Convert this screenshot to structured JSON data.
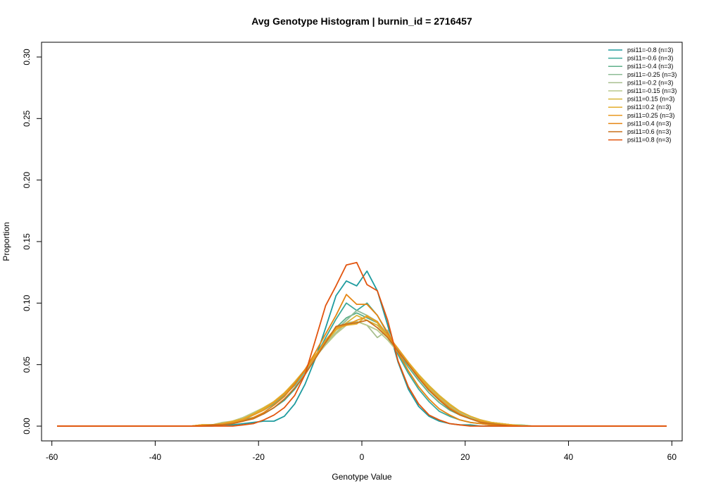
{
  "chart_data": {
    "type": "line",
    "title": "Avg Genotype Histogram | burnin_id = 2716457",
    "xlabel": "Genotype Value",
    "ylabel": "Proportion",
    "xlim": [
      -62,
      62
    ],
    "ylim": [
      -0.012,
      0.312
    ],
    "xticks": [
      -60,
      -40,
      -20,
      0,
      20,
      40,
      60
    ],
    "yticks": [
      0.0,
      0.05,
      0.1,
      0.15,
      0.2,
      0.25,
      0.3
    ],
    "ytick_labels": [
      "0.00",
      "0.05",
      "0.10",
      "0.15",
      "0.20",
      "0.25",
      "0.30"
    ],
    "grid": false,
    "legend_position": "top-right",
    "x": [
      -59,
      -57,
      -55,
      -53,
      -51,
      -49,
      -47,
      -45,
      -43,
      -41,
      -39,
      -37,
      -35,
      -33,
      -31,
      -29,
      -27,
      -25,
      -23,
      -21,
      -19,
      -17,
      -15,
      -13,
      -11,
      -9,
      -7,
      -5,
      -3,
      -1,
      1,
      3,
      5,
      7,
      9,
      11,
      13,
      15,
      17,
      19,
      21,
      23,
      25,
      27,
      29,
      31,
      33,
      35,
      37,
      39,
      41,
      43,
      45,
      47,
      49,
      51,
      53,
      55,
      57,
      59
    ],
    "series": [
      {
        "name": "psi11=-0.8 (n=3)",
        "color": "#1E9B9F",
        "values": [
          0,
          0,
          0,
          0,
          0,
          0,
          0,
          0,
          0,
          0,
          0,
          0,
          0,
          0,
          0,
          0,
          0.001,
          0.001,
          0.002,
          0.003,
          0.004,
          0.004,
          0.008,
          0.018,
          0.034,
          0.055,
          0.08,
          0.106,
          0.118,
          0.114,
          0.126,
          0.11,
          0.082,
          0.052,
          0.03,
          0.016,
          0.008,
          0.004,
          0.002,
          0.001,
          0.001,
          0,
          0,
          0,
          0,
          0,
          0,
          0,
          0,
          0,
          0,
          0,
          0,
          0,
          0,
          0,
          0,
          0,
          0,
          0
        ]
      },
      {
        "name": "psi11=-0.6 (n=3)",
        "color": "#3AA89A",
        "values": [
          0,
          0,
          0,
          0,
          0,
          0,
          0,
          0,
          0,
          0,
          0,
          0,
          0,
          0,
          0,
          0.001,
          0.002,
          0.003,
          0.005,
          0.007,
          0.01,
          0.015,
          0.021,
          0.03,
          0.042,
          0.056,
          0.072,
          0.087,
          0.1,
          0.094,
          0.1,
          0.09,
          0.075,
          0.058,
          0.043,
          0.03,
          0.02,
          0.012,
          0.008,
          0.005,
          0.003,
          0.002,
          0.001,
          0,
          0,
          0,
          0,
          0,
          0,
          0,
          0,
          0,
          0,
          0,
          0,
          0,
          0,
          0,
          0,
          0
        ]
      },
      {
        "name": "psi11=-0.4 (n=3)",
        "color": "#5FB08A",
        "values": [
          0,
          0,
          0,
          0,
          0,
          0,
          0,
          0,
          0,
          0,
          0,
          0,
          0,
          0,
          0.001,
          0.001,
          0.002,
          0.004,
          0.006,
          0.009,
          0.013,
          0.018,
          0.025,
          0.033,
          0.044,
          0.056,
          0.068,
          0.08,
          0.088,
          0.092,
          0.088,
          0.084,
          0.072,
          0.06,
          0.048,
          0.037,
          0.027,
          0.019,
          0.013,
          0.009,
          0.006,
          0.004,
          0.002,
          0.001,
          0.001,
          0,
          0,
          0,
          0,
          0,
          0,
          0,
          0,
          0,
          0,
          0,
          0,
          0,
          0,
          0
        ]
      },
      {
        "name": "psi11=-0.25 (n=3)",
        "color": "#8EBC96",
        "values": [
          0,
          0,
          0,
          0,
          0,
          0,
          0,
          0,
          0,
          0,
          0,
          0,
          0,
          0,
          0.001,
          0.001,
          0.002,
          0.004,
          0.006,
          0.01,
          0.014,
          0.019,
          0.026,
          0.034,
          0.045,
          0.057,
          0.068,
          0.078,
          0.086,
          0.094,
          0.09,
          0.085,
          0.072,
          0.062,
          0.05,
          0.04,
          0.03,
          0.022,
          0.015,
          0.01,
          0.007,
          0.004,
          0.003,
          0.002,
          0.001,
          0,
          0,
          0,
          0,
          0,
          0,
          0,
          0,
          0,
          0,
          0,
          0,
          0,
          0,
          0
        ]
      },
      {
        "name": "psi11=-0.2 (n=3)",
        "color": "#A8BF8E",
        "values": [
          0,
          0,
          0,
          0,
          0,
          0,
          0,
          0,
          0,
          0,
          0,
          0,
          0,
          0,
          0.001,
          0.001,
          0.002,
          0.004,
          0.007,
          0.01,
          0.014,
          0.02,
          0.026,
          0.035,
          0.045,
          0.056,
          0.067,
          0.076,
          0.084,
          0.085,
          0.082,
          0.072,
          0.078,
          0.06,
          0.05,
          0.041,
          0.031,
          0.023,
          0.016,
          0.011,
          0.007,
          0.005,
          0.003,
          0.002,
          0.001,
          0.001,
          0,
          0,
          0,
          0,
          0,
          0,
          0,
          0,
          0,
          0,
          0,
          0,
          0,
          0
        ]
      },
      {
        "name": "psi11=-0.15 (n=3)",
        "color": "#B8C98C",
        "values": [
          0,
          0,
          0,
          0,
          0,
          0,
          0,
          0,
          0,
          0,
          0,
          0,
          0,
          0,
          0.001,
          0.001,
          0.003,
          0.004,
          0.007,
          0.011,
          0.015,
          0.02,
          0.027,
          0.035,
          0.045,
          0.056,
          0.066,
          0.075,
          0.082,
          0.085,
          0.082,
          0.078,
          0.07,
          0.06,
          0.051,
          0.041,
          0.032,
          0.024,
          0.017,
          0.012,
          0.008,
          0.005,
          0.003,
          0.002,
          0.001,
          0.001,
          0,
          0,
          0,
          0,
          0,
          0,
          0,
          0,
          0,
          0,
          0,
          0,
          0,
          0
        ]
      },
      {
        "name": "psi11=0.15 (n=3)",
        "color": "#D6B53A",
        "values": [
          0,
          0,
          0,
          0,
          0,
          0,
          0,
          0,
          0,
          0,
          0,
          0,
          0,
          0,
          0.001,
          0.001,
          0.002,
          0.004,
          0.006,
          0.01,
          0.015,
          0.02,
          0.027,
          0.036,
          0.046,
          0.058,
          0.068,
          0.078,
          0.084,
          0.09,
          0.086,
          0.082,
          0.073,
          0.063,
          0.052,
          0.042,
          0.033,
          0.025,
          0.018,
          0.012,
          0.008,
          0.005,
          0.003,
          0.002,
          0.001,
          0,
          0,
          0,
          0,
          0,
          0,
          0,
          0,
          0,
          0,
          0,
          0,
          0,
          0,
          0
        ]
      },
      {
        "name": "psi11=0.2 (n=3)",
        "color": "#E3AD2C",
        "values": [
          0,
          0,
          0,
          0,
          0,
          0,
          0,
          0,
          0,
          0,
          0,
          0,
          0,
          0,
          0.001,
          0.001,
          0.002,
          0.004,
          0.006,
          0.01,
          0.014,
          0.02,
          0.027,
          0.035,
          0.046,
          0.057,
          0.068,
          0.079,
          0.082,
          0.083,
          0.09,
          0.084,
          0.074,
          0.063,
          0.052,
          0.041,
          0.032,
          0.024,
          0.017,
          0.012,
          0.008,
          0.005,
          0.003,
          0.002,
          0.001,
          0,
          0,
          0,
          0,
          0,
          0,
          0,
          0,
          0,
          0,
          0,
          0,
          0,
          0,
          0
        ]
      },
      {
        "name": "psi11=0.25 (n=3)",
        "color": "#E89A22",
        "values": [
          0,
          0,
          0,
          0,
          0,
          0,
          0,
          0,
          0,
          0,
          0,
          0,
          0,
          0,
          0.001,
          0.001,
          0.002,
          0.003,
          0.005,
          0.009,
          0.013,
          0.019,
          0.026,
          0.035,
          0.045,
          0.057,
          0.07,
          0.08,
          0.082,
          0.086,
          0.089,
          0.085,
          0.074,
          0.063,
          0.051,
          0.04,
          0.03,
          0.022,
          0.015,
          0.01,
          0.006,
          0.004,
          0.002,
          0.001,
          0.001,
          0,
          0,
          0,
          0,
          0,
          0,
          0,
          0,
          0,
          0,
          0,
          0,
          0,
          0,
          0
        ]
      },
      {
        "name": "psi11=0.4 (n=3)",
        "color": "#E58512",
        "values": [
          0,
          0,
          0,
          0,
          0,
          0,
          0,
          0,
          0,
          0,
          0,
          0,
          0,
          0,
          0,
          0.001,
          0.001,
          0.002,
          0.004,
          0.007,
          0.011,
          0.017,
          0.024,
          0.034,
          0.046,
          0.06,
          0.075,
          0.09,
          0.107,
          0.099,
          0.099,
          0.09,
          0.076,
          0.06,
          0.045,
          0.032,
          0.022,
          0.014,
          0.009,
          0.005,
          0.003,
          0.002,
          0.001,
          0,
          0,
          0,
          0,
          0,
          0,
          0,
          0,
          0,
          0,
          0,
          0,
          0,
          0,
          0,
          0,
          0
        ]
      },
      {
        "name": "psi11=0.6 (n=3)",
        "color": "#C8701C",
        "values": [
          0,
          0,
          0,
          0,
          0,
          0,
          0,
          0,
          0,
          0,
          0,
          0,
          0,
          0,
          0,
          0.001,
          0.001,
          0.002,
          0.004,
          0.006,
          0.01,
          0.015,
          0.022,
          0.031,
          0.042,
          0.055,
          0.068,
          0.081,
          0.083,
          0.084,
          0.086,
          0.08,
          0.072,
          0.061,
          0.05,
          0.039,
          0.029,
          0.021,
          0.014,
          0.009,
          0.006,
          0.003,
          0.002,
          0.001,
          0,
          0,
          0,
          0,
          0,
          0,
          0,
          0,
          0,
          0,
          0,
          0,
          0,
          0,
          0,
          0
        ]
      },
      {
        "name": "psi11=0.8 (n=3)",
        "color": "#E2540E",
        "values": [
          0,
          0,
          0,
          0,
          0,
          0,
          0,
          0,
          0,
          0,
          0,
          0,
          0,
          0,
          0,
          0,
          0,
          0,
          0.001,
          0.002,
          0.005,
          0.009,
          0.015,
          0.025,
          0.042,
          0.07,
          0.098,
          0.114,
          0.131,
          0.133,
          0.115,
          0.11,
          0.086,
          0.053,
          0.032,
          0.018,
          0.009,
          0.005,
          0.002,
          0.001,
          0,
          0,
          0,
          0,
          0,
          0,
          0,
          0,
          0,
          0,
          0,
          0,
          0,
          0,
          0,
          0,
          0,
          0,
          0,
          0
        ]
      }
    ]
  }
}
